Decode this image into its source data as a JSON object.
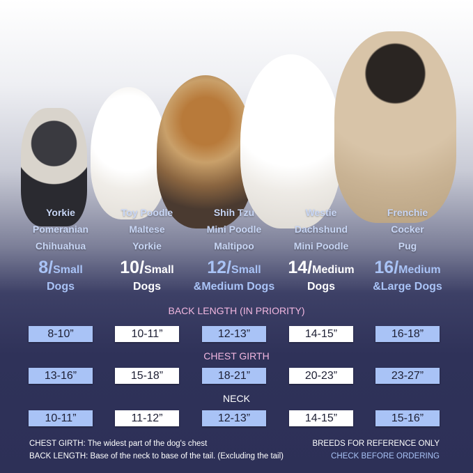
{
  "colors": {
    "accent_blue": "#a9c3f6",
    "heading_pink": "#f1b7e0",
    "background_navy": "#2d3057"
  },
  "columns": [
    {
      "breeds": [
        "Yorkie",
        "Pomeranian",
        "Chihuahua"
      ],
      "size": "8/",
      "category_line1": "Small",
      "category_line2": "Dogs",
      "style": "blue"
    },
    {
      "breeds": [
        "Toy Poodle",
        "Maltese",
        "Yorkie"
      ],
      "size": "10/",
      "category_line1": "Small",
      "category_line2": "Dogs",
      "style": "white"
    },
    {
      "breeds": [
        "Shih Tzu",
        "Mini Poodle",
        "Maltipoo"
      ],
      "size": "12/",
      "category_line1": "Small",
      "category_line2": "&Medium Dogs",
      "style": "blue"
    },
    {
      "breeds": [
        "Westie",
        "Dachshund",
        "Mini Poodle"
      ],
      "size": "14/",
      "category_line1": "Medium",
      "category_line2": "Dogs",
      "style": "white"
    },
    {
      "breeds": [
        "Frenchie",
        "Cocker",
        "Pug"
      ],
      "size": "16/",
      "category_line1": "Medium",
      "category_line2": "&Large Dogs",
      "style": "blue"
    }
  ],
  "dogs": [
    "chihuahua",
    "pomeranian",
    "yorkie",
    "westie",
    "pug"
  ],
  "sections": [
    {
      "title": "BACK LENGTH (IN PRIORITY)",
      "values": [
        "8-10”",
        "10-11”",
        "12-13”",
        "14-15”",
        "16-18”"
      ]
    },
    {
      "title": "CHEST GIRTH",
      "values": [
        "13-16”",
        "15-18”",
        "18-21”",
        "20-23”",
        "23-27”"
      ]
    },
    {
      "title": "NECK",
      "values": [
        "10-11”",
        "11-12”",
        "12-13”",
        "14-15”",
        "15-16”"
      ]
    }
  ],
  "notes": {
    "chest_girth": "CHEST GIRTH: The widest part of the dog's chest",
    "back_length": "BACK LENGTH: Base of the neck to base of the tail. (Excluding the tail)",
    "breeds_ref": "BREEDS FOR REFERENCE ONLY",
    "check": "CHECK BEFORE ORDERING"
  }
}
